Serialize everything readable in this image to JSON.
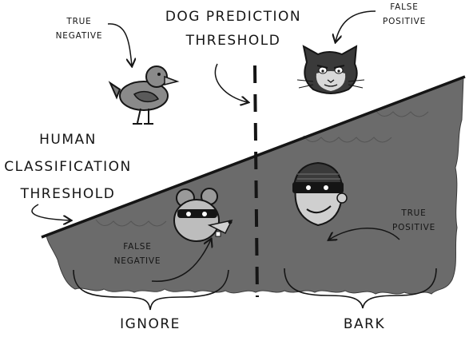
{
  "diagram": {
    "dog_threshold": [
      "DOG PREDICTION",
      "THRESHOLD"
    ],
    "human_threshold": [
      "HUMAN",
      "CLASSIFICATION",
      "THRESHOLD"
    ],
    "true_negative": [
      "TRUE",
      "NEGATIVE"
    ],
    "false_positive": [
      "FALSE",
      "POSITIVE"
    ],
    "false_negative": [
      "FALSE",
      "NEGATIVE"
    ],
    "true_positive": [
      "TRUE",
      "POSITIVE"
    ],
    "ignore": "IGNORE",
    "bark": "BARK"
  },
  "icons": {
    "duck": "duck-icon",
    "cat": "cat-icon",
    "rat": "rat-burglar-icon",
    "burglar": "burglar-icon"
  },
  "colors": {
    "fill": "#6b6b6b",
    "ink": "#151515"
  }
}
